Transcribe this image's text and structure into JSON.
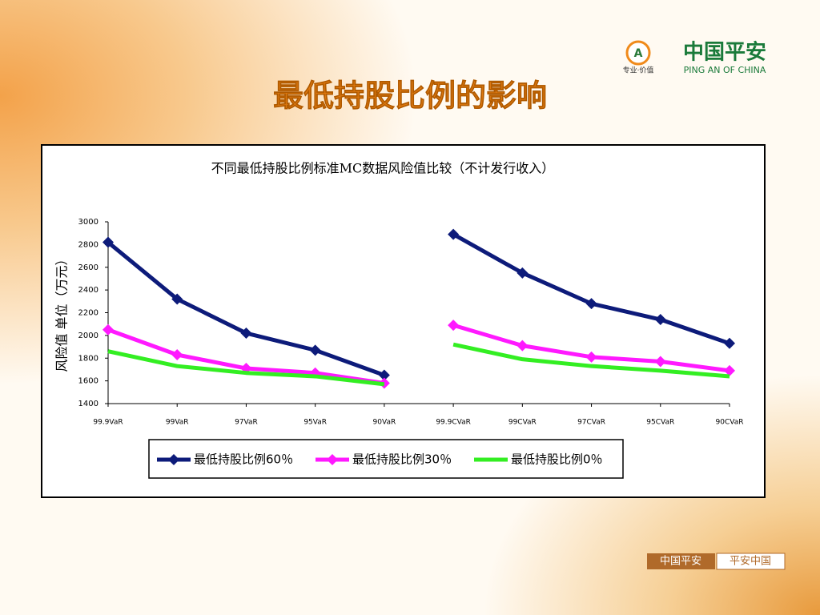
{
  "slide": {
    "title": "最低持股比例的影响",
    "logo": {
      "name": "中国平安",
      "slogan": "专业·价值",
      "english": "PING AN OF CHINA"
    },
    "footer": [
      "中国平安",
      "平安中国"
    ]
  },
  "chart_data": {
    "type": "line",
    "title": "不同最低持股比例标准MC数据风险值比较（不计发行收入）",
    "y_label": "风险值 单位（万元）",
    "categories": [
      "99.9VaR",
      "99VaR",
      "97VaR",
      "95VaR",
      "90VaR",
      "99.9CVaR",
      "99CVaR",
      "97CVaR",
      "95CVaR",
      "90CVaR"
    ],
    "break_after": 4,
    "series": [
      {
        "name": "最低持股比例60％",
        "color": "#0d1b7a",
        "marker": "diamond",
        "values": [
          2820,
          2320,
          2020,
          1870,
          1650,
          2890,
          2550,
          2280,
          2140,
          1930
        ]
      },
      {
        "name": "最低持股比例30％",
        "color": "#ff19ff",
        "marker": "diamond",
        "values": [
          2050,
          1830,
          1710,
          1670,
          1580,
          2090,
          1910,
          1810,
          1770,
          1690
        ]
      },
      {
        "name": "最低持股比例0％",
        "color": "#33ee22",
        "marker": "none",
        "values": [
          1860,
          1730,
          1670,
          1640,
          1570,
          1920,
          1790,
          1730,
          1690,
          1640
        ]
      }
    ],
    "ylim": [
      1400,
      3000
    ],
    "yticks": [
      1400,
      1600,
      1800,
      2000,
      2200,
      2400,
      2600,
      2800,
      3000
    ],
    "legend": "bottom"
  }
}
